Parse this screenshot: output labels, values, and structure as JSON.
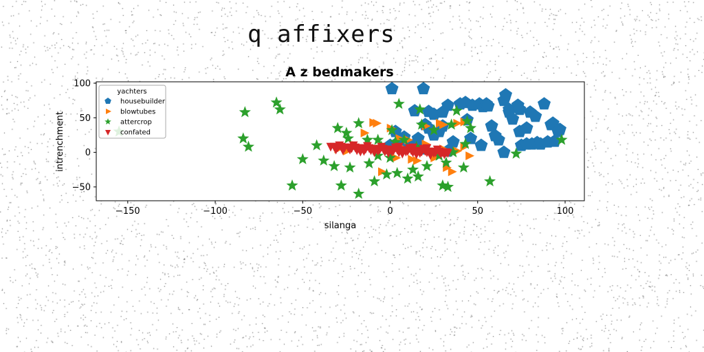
{
  "page_title": "q affixers",
  "chart_data": {
    "type": "scatter",
    "title": "A z bedmakers",
    "xlabel": "silanga",
    "ylabel": "intrenchment",
    "xlim": [
      -168,
      111
    ],
    "ylim": [
      -70,
      102
    ],
    "xticks": [
      -150,
      -100,
      -50,
      0,
      50,
      100
    ],
    "yticks": [
      -50,
      0,
      50,
      100
    ],
    "grid": false,
    "legend": {
      "title": "yachters",
      "placement": "top-left"
    },
    "series": [
      {
        "name": "housebuilder",
        "marker": "pentagon",
        "color": "#1f77b4",
        "points": [
          [
            1,
            92
          ],
          [
            19,
            92
          ],
          [
            14,
            60
          ],
          [
            22,
            59
          ],
          [
            25,
            55
          ],
          [
            30,
            58
          ],
          [
            33,
            68
          ],
          [
            40,
            70
          ],
          [
            43,
            72
          ],
          [
            44,
            47
          ],
          [
            47,
            68
          ],
          [
            51,
            70
          ],
          [
            53,
            66
          ],
          [
            55,
            70
          ],
          [
            56,
            67
          ],
          [
            52,
            10
          ],
          [
            58,
            38
          ],
          [
            60,
            24
          ],
          [
            62,
            18
          ],
          [
            65,
            75
          ],
          [
            66,
            83
          ],
          [
            68,
            58
          ],
          [
            68,
            62
          ],
          [
            70,
            48
          ],
          [
            73,
            68
          ],
          [
            74,
            62
          ],
          [
            74,
            30
          ],
          [
            75,
            10
          ],
          [
            78,
            12
          ],
          [
            78,
            35
          ],
          [
            80,
            58
          ],
          [
            81,
            12
          ],
          [
            83,
            52
          ],
          [
            84,
            14
          ],
          [
            86,
            12
          ],
          [
            88,
            70
          ],
          [
            90,
            15
          ],
          [
            92,
            40
          ],
          [
            93,
            42
          ],
          [
            94,
            16
          ],
          [
            96,
            30
          ],
          [
            97,
            33
          ],
          [
            65,
            0
          ],
          [
            30,
            38
          ],
          [
            28,
            30
          ],
          [
            20,
            40
          ],
          [
            22,
            35
          ],
          [
            5,
            15
          ],
          [
            8,
            10
          ],
          [
            12,
            8
          ],
          [
            16,
            20
          ],
          [
            18,
            5
          ],
          [
            0,
            10
          ],
          [
            3,
            30
          ],
          [
            25,
            25
          ],
          [
            33,
            2
          ],
          [
            14,
            12
          ],
          [
            8,
            22
          ],
          [
            36,
            15
          ],
          [
            46,
            20
          ]
        ]
      },
      {
        "name": "blowtubes",
        "marker": "triangle-right",
        "color": "#ff7f0e",
        "points": [
          [
            -30,
            5
          ],
          [
            -25,
            2
          ],
          [
            -20,
            10
          ],
          [
            -15,
            28
          ],
          [
            -10,
            43
          ],
          [
            -8,
            42
          ],
          [
            -5,
            -28
          ],
          [
            0,
            35
          ],
          [
            5,
            20
          ],
          [
            10,
            18
          ],
          [
            12,
            -10
          ],
          [
            15,
            -12
          ],
          [
            20,
            38
          ],
          [
            25,
            -8
          ],
          [
            28,
            42
          ],
          [
            30,
            40
          ],
          [
            32,
            -22
          ],
          [
            35,
            -28
          ],
          [
            38,
            42
          ],
          [
            42,
            44
          ],
          [
            42,
            8
          ],
          [
            45,
            -5
          ],
          [
            20,
            12
          ],
          [
            15,
            5
          ],
          [
            30,
            5
          ],
          [
            8,
            5
          ],
          [
            3,
            -8
          ],
          [
            38,
            2
          ]
        ]
      },
      {
        "name": "attercrop",
        "marker": "star",
        "color": "#2ca02c",
        "points": [
          [
            -155,
            30
          ],
          [
            -83,
            58
          ],
          [
            -84,
            20
          ],
          [
            -81,
            8
          ],
          [
            -65,
            72
          ],
          [
            -63,
            62
          ],
          [
            -56,
            -48
          ],
          [
            -50,
            -10
          ],
          [
            -42,
            10
          ],
          [
            -38,
            -12
          ],
          [
            -32,
            -20
          ],
          [
            -30,
            35
          ],
          [
            -28,
            -48
          ],
          [
            -25,
            28
          ],
          [
            -24,
            20
          ],
          [
            -23,
            -22
          ],
          [
            -18,
            42
          ],
          [
            -18,
            -60
          ],
          [
            -13,
            18
          ],
          [
            -12,
            -16
          ],
          [
            -9,
            -42
          ],
          [
            -7,
            18
          ],
          [
            -7,
            -5
          ],
          [
            -5,
            8
          ],
          [
            -2,
            -32
          ],
          [
            0,
            -8
          ],
          [
            1,
            32
          ],
          [
            3,
            15
          ],
          [
            4,
            -30
          ],
          [
            5,
            70
          ],
          [
            8,
            18
          ],
          [
            10,
            -38
          ],
          [
            13,
            -25
          ],
          [
            15,
            8
          ],
          [
            16,
            -35
          ],
          [
            17,
            62
          ],
          [
            18,
            40
          ],
          [
            21,
            -20
          ],
          [
            25,
            32
          ],
          [
            28,
            -5
          ],
          [
            30,
            -48
          ],
          [
            32,
            -15
          ],
          [
            33,
            -50
          ],
          [
            35,
            40
          ],
          [
            36,
            0
          ],
          [
            38,
            60
          ],
          [
            42,
            -22
          ],
          [
            43,
            12
          ],
          [
            44,
            45
          ],
          [
            46,
            35
          ],
          [
            57,
            -42
          ],
          [
            72,
            -2
          ],
          [
            98,
            18
          ]
        ]
      },
      {
        "name": "confated",
        "marker": "triangle-down",
        "color": "#d62728",
        "points": [
          [
            -34,
            9
          ],
          [
            -32,
            9
          ],
          [
            -30,
            8
          ],
          [
            -28,
            9
          ],
          [
            -26,
            8
          ],
          [
            -24,
            8
          ],
          [
            -22,
            7
          ],
          [
            -20,
            8
          ],
          [
            -18,
            7
          ],
          [
            -16,
            7
          ],
          [
            -14,
            6
          ],
          [
            -12,
            7
          ],
          [
            -10,
            6
          ],
          [
            -8,
            6
          ],
          [
            -6,
            5
          ],
          [
            -4,
            6
          ],
          [
            -2,
            5
          ],
          [
            0,
            5
          ],
          [
            2,
            4
          ],
          [
            4,
            5
          ],
          [
            6,
            4
          ],
          [
            8,
            4
          ],
          [
            10,
            3
          ],
          [
            12,
            4
          ],
          [
            14,
            3
          ],
          [
            16,
            3
          ],
          [
            18,
            2
          ],
          [
            20,
            3
          ],
          [
            22,
            2
          ],
          [
            24,
            2
          ],
          [
            26,
            1
          ],
          [
            28,
            2
          ],
          [
            30,
            1
          ],
          [
            32,
            1
          ],
          [
            -31,
            5
          ],
          [
            -27,
            4
          ],
          [
            -23,
            5
          ],
          [
            -19,
            4
          ],
          [
            -15,
            3
          ],
          [
            -11,
            4
          ],
          [
            -7,
            3
          ],
          [
            -3,
            2
          ],
          [
            1,
            2
          ],
          [
            5,
            1
          ],
          [
            9,
            2
          ],
          [
            13,
            1
          ],
          [
            17,
            0
          ],
          [
            21,
            1
          ],
          [
            25,
            0
          ],
          [
            29,
            -1
          ],
          [
            33,
            0
          ],
          [
            -29,
            11
          ],
          [
            -21,
            11
          ],
          [
            -13,
            10
          ],
          [
            -5,
            9
          ],
          [
            3,
            8
          ],
          [
            11,
            7
          ],
          [
            19,
            6
          ],
          [
            27,
            5
          ],
          [
            -17,
            2
          ],
          [
            -9,
            1
          ],
          [
            7,
            -1
          ],
          [
            15,
            -2
          ],
          [
            23,
            -3
          ],
          [
            31,
            -2
          ],
          [
            -1,
            0
          ],
          [
            5,
            9
          ],
          [
            13,
            8
          ],
          [
            21,
            7
          ]
        ]
      }
    ]
  }
}
